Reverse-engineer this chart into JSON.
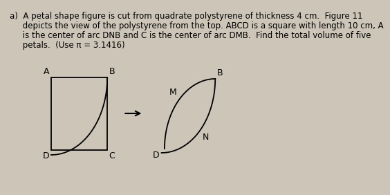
{
  "background_color": "#ccc5b8",
  "square_color": "#000000",
  "arc_color": "#000000",
  "petal_color": "#000000",
  "arrow_color": "#000000",
  "label_color": "#000000",
  "font_size_text": 8.5,
  "font_size_labels": 9,
  "text_line1": "a)  A petal shape figure is cut from quadrate polystyrene of thickness 4 cm.  Figure 11",
  "text_line2": "     depicts the view of the polystyrene from the top. ABCD is a square with length 10 cm, A",
  "text_line3": "     is the center of arc DNB and C is the center of arc DMB.  Find the total volume of five",
  "text_line4": "     petals.  (Use π = 3.1416)"
}
